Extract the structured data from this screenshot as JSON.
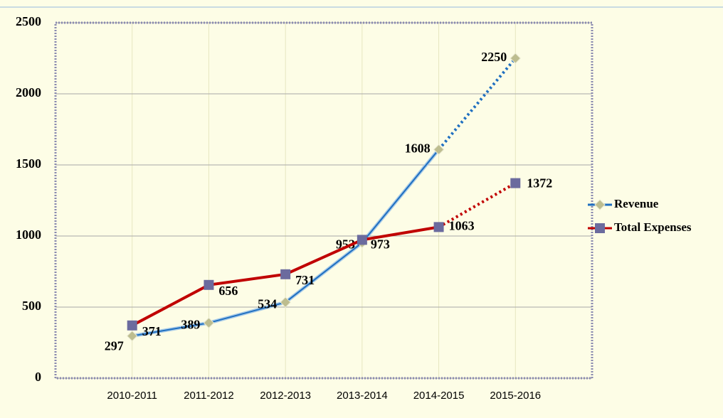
{
  "chart_data": {
    "type": "line",
    "categories": [
      "2010-2011",
      "2011-2012",
      "2012-2013",
      "2013-2014",
      "2014-2015",
      "2015-2016"
    ],
    "series": [
      {
        "name": "Revenue",
        "color": "#1f6fc0",
        "marker": "diamond",
        "marker_color": "#bdbd8f",
        "values": [
          297,
          389,
          534,
          953,
          1608,
          2250
        ]
      },
      {
        "name": "Total Expenses",
        "color": "#c00000",
        "marker": "square",
        "marker_color": "#6b6b9e",
        "values": [
          371,
          656,
          731,
          973,
          1063,
          1372
        ]
      }
    ],
    "dotted_from": 4,
    "ylim": [
      0,
      2500
    ],
    "yticks": [
      0,
      500,
      1000,
      1500,
      2000,
      2500
    ],
    "grid": true,
    "legend": "right"
  }
}
